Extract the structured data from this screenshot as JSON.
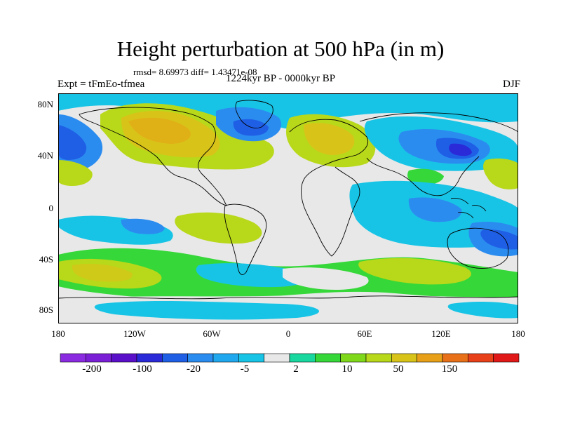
{
  "title": "Height perturbation at 500 hPa (in m)",
  "stats": "rmsd= 8.69973 diff= 1.43471e-08",
  "subtitle": "1224kyr BP - 0000kyr BP",
  "left_label": "Expt = tFmEo-tfmea",
  "right_label": "DJF",
  "y_ticks": [
    "80N",
    "40N",
    "0",
    "40S",
    "80S"
  ],
  "x_ticks": [
    "180",
    "120W",
    "60W",
    "0",
    "60E",
    "120E",
    "180"
  ],
  "colorbar": {
    "colors": [
      "#8a2be2",
      "#7b1fd6",
      "#5a10c8",
      "#2a2ad8",
      "#1f5fe6",
      "#2b8cf0",
      "#1fa8ee",
      "#18c4e6",
      "#e8e8e8",
      "#18d8a0",
      "#35d838",
      "#7fd81a",
      "#b8d81a",
      "#d8c418",
      "#e8a018",
      "#e87018",
      "#e84018",
      "#e01818"
    ],
    "labels": [
      "-200",
      "-100",
      "-20",
      "-5",
      "2",
      "10",
      "50",
      "150"
    ]
  },
  "colors": {
    "land_outline": "#000000",
    "neutral": "#e8e8e8",
    "light_blue": "#18c4e6",
    "mid_blue": "#2b8cf0",
    "dark_blue": "#1f5fe6",
    "deep_blue": "#2a2ad8",
    "teal": "#18d8a0",
    "green": "#35d838",
    "yellow_green": "#b8d81a",
    "yellow": "#d8c418",
    "orange": "#e8a018"
  }
}
